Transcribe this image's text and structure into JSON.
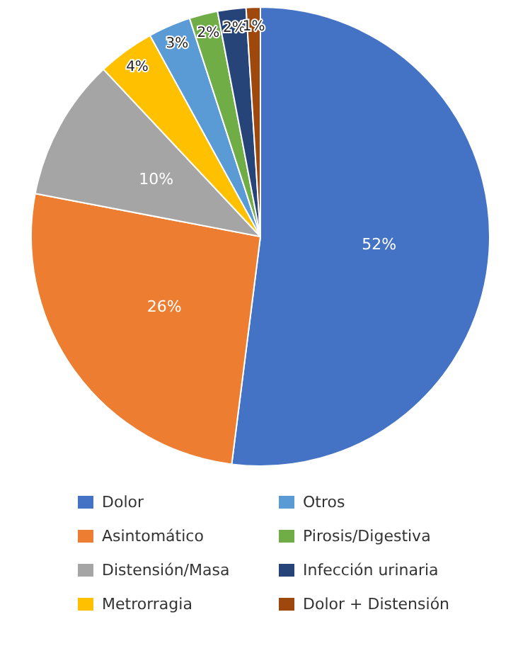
{
  "chart_data": {
    "type": "pie",
    "categories": [
      "Dolor",
      "Asintomático",
      "Distensión/Masa",
      "Metrorragia",
      "Otros",
      "Pirosis/Digestiva",
      "Infección urinaria",
      "Dolor + Distensión"
    ],
    "values": [
      52,
      26,
      10,
      4,
      3,
      2,
      2,
      1
    ],
    "colors": [
      "#4472c4",
      "#ed7d31",
      "#a5a5a5",
      "#ffc000",
      "#5b9bd5",
      "#70ad47",
      "#264478",
      "#9e480e"
    ],
    "value_labels": [
      "52%",
      "26%",
      "10%",
      "4%",
      "3%",
      "2%",
      "2%",
      "1%"
    ],
    "legend": "bottom"
  }
}
